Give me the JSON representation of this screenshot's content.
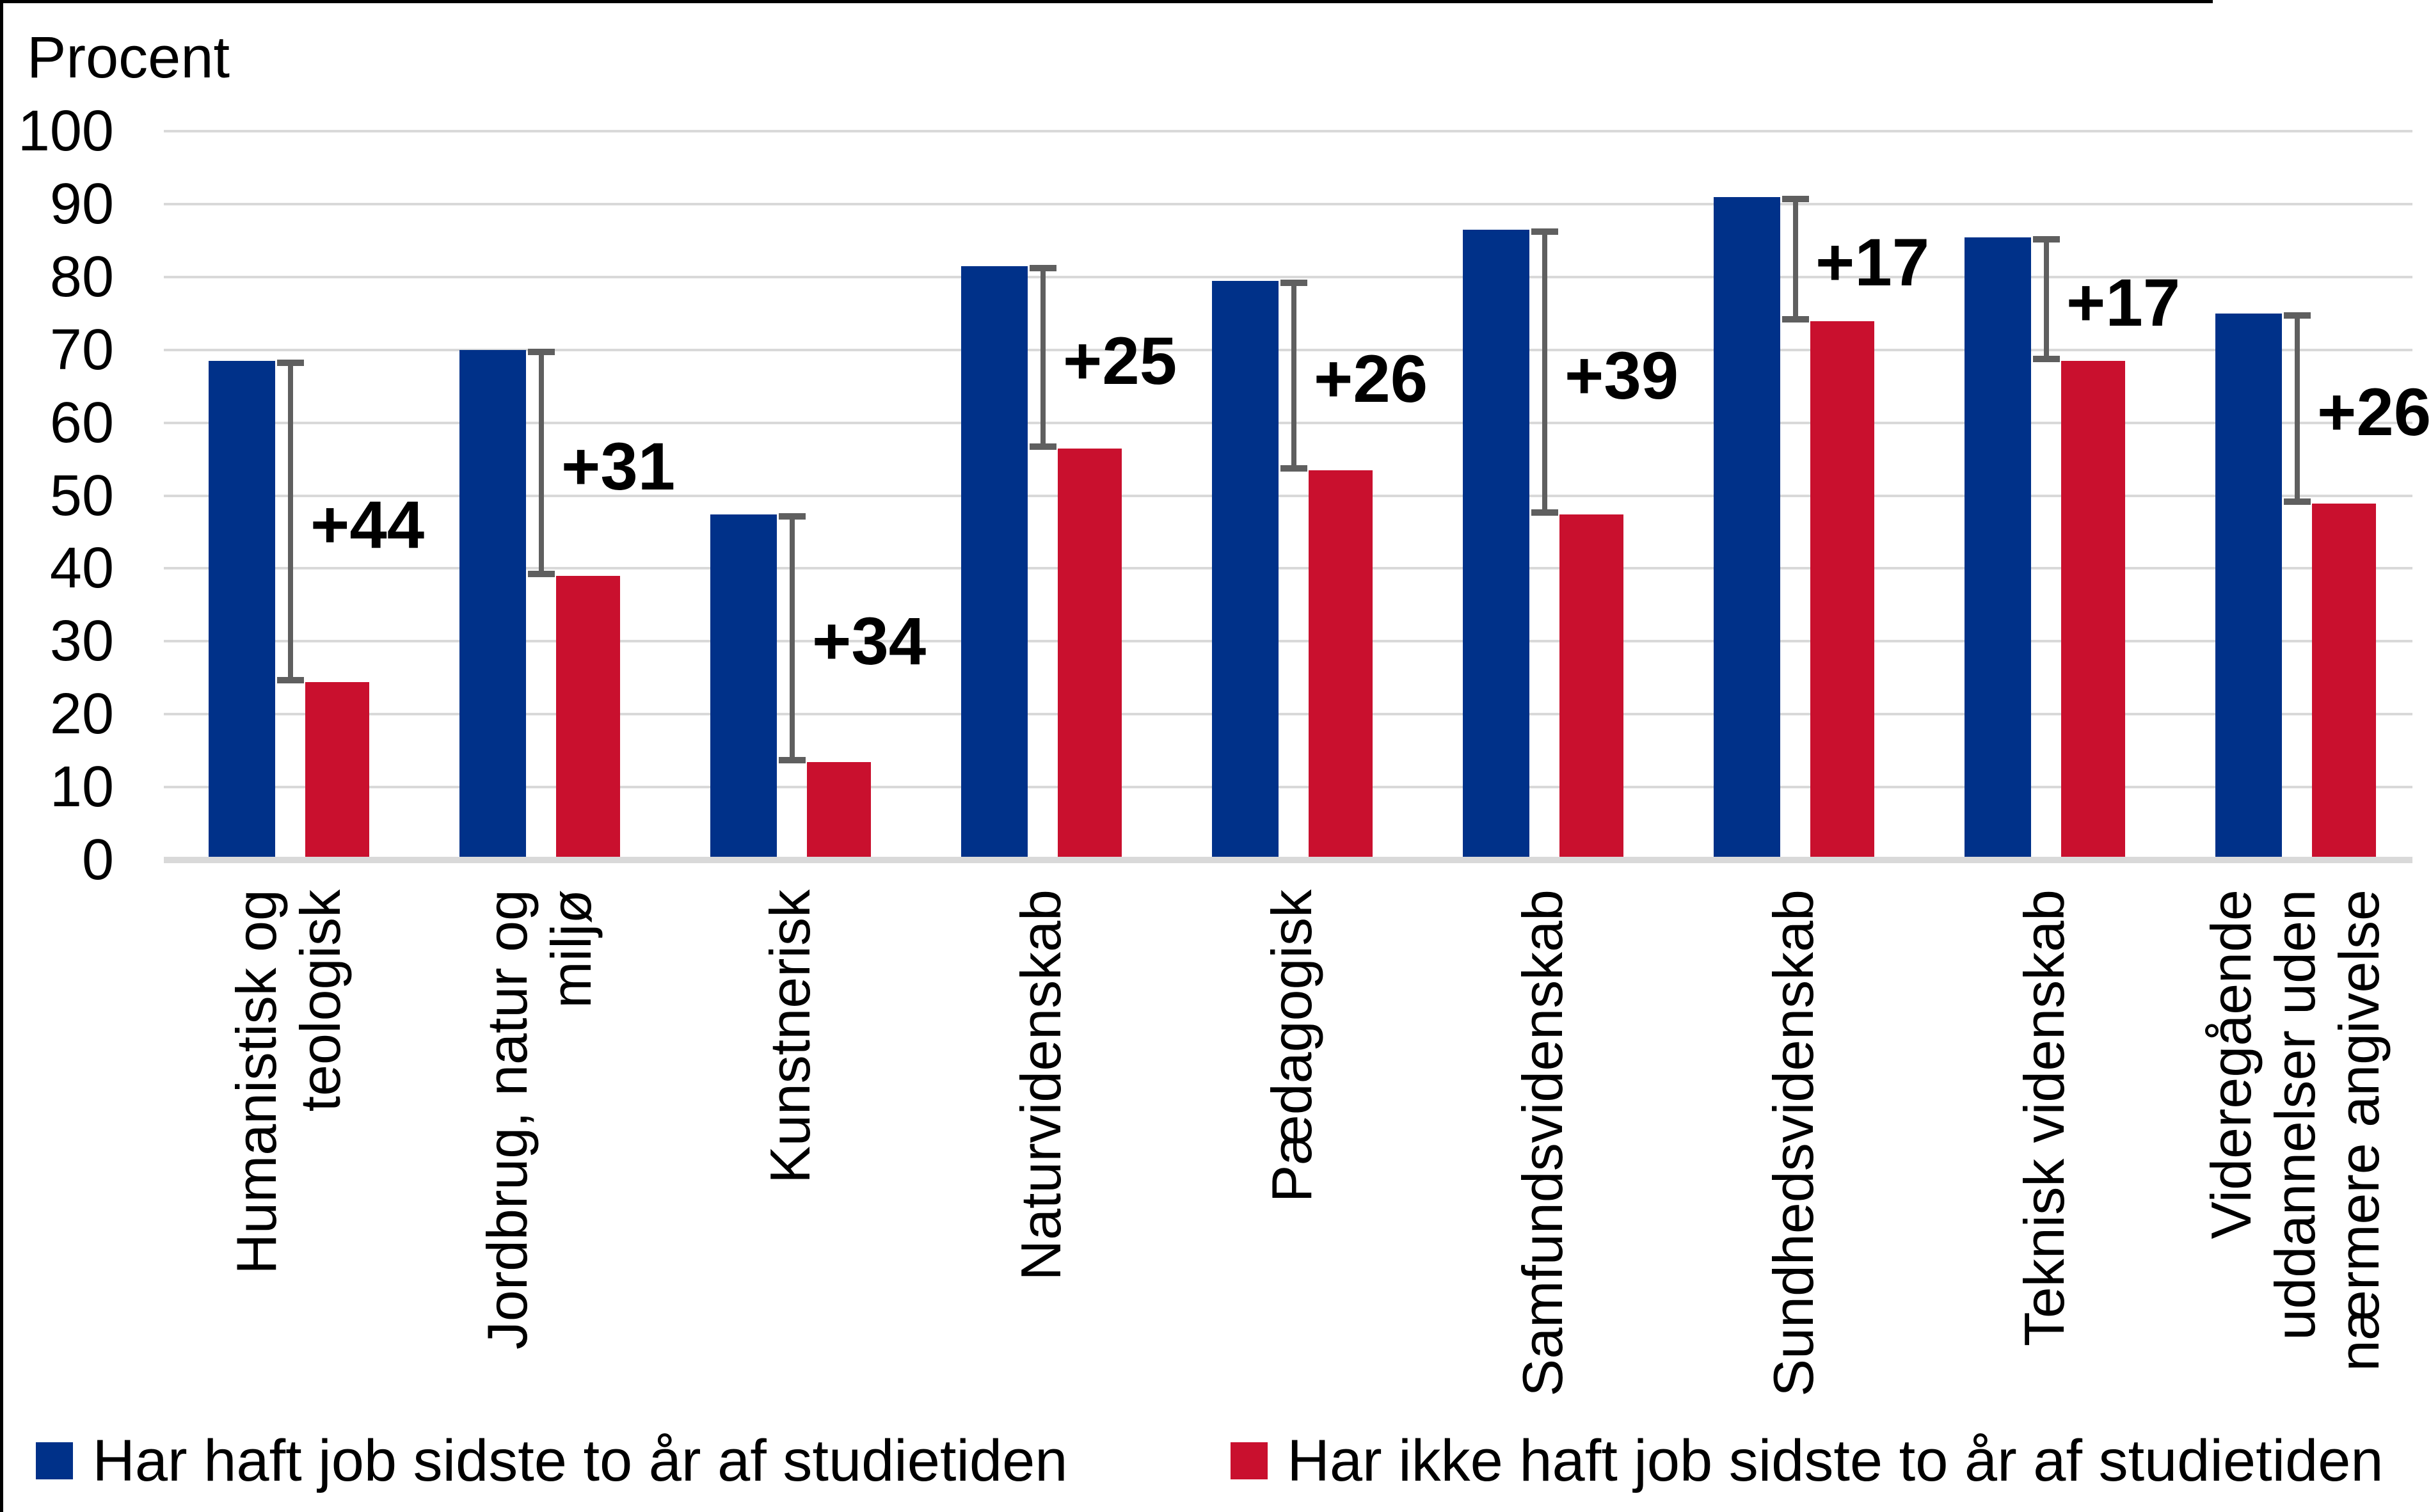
{
  "chart_data": {
    "type": "bar",
    "title": "",
    "ylabel": "Procent",
    "xlabel": "",
    "ylim": [
      0,
      100
    ],
    "ytick_step": 10,
    "grid": true,
    "legend_position": "bottom",
    "categories": [
      "Humanistisk og teologisk",
      "Jordbrug, natur og miljø",
      "Kunstnerisk",
      "Naturvidenskab",
      "Pædagogisk",
      "Samfundsvidenskab",
      "Sundhedsvidenskab",
      "Teknisk videnskab",
      "Videregående uddannelser uden nærmere angivelse"
    ],
    "category_lines": [
      [
        "Humanistisk og",
        "teologisk"
      ],
      [
        "Jordbrug, natur og",
        "miljø"
      ],
      [
        "Kunstnerisk"
      ],
      [
        "Naturvidenskab"
      ],
      [
        "Pædagogisk"
      ],
      [
        "Samfundsvidenskab"
      ],
      [
        "Sundhedsvidenskab"
      ],
      [
        "Teknisk videnskab"
      ],
      [
        "Videregående",
        "uddannelser uden",
        "nærmere angivelse"
      ]
    ],
    "series": [
      {
        "name": "Har haft job sidste to år af studietiden",
        "color": "#003189",
        "values": [
          68,
          69.5,
          47,
          81,
          79,
          86,
          90.5,
          85,
          74.5
        ]
      },
      {
        "name": "Har ikke haft job sidste to år af studietiden",
        "color": "#c9102e",
        "values": [
          24,
          38.5,
          13,
          56,
          53,
          47,
          73.5,
          68,
          48.5
        ]
      }
    ],
    "difference_labels": [
      "+44",
      "+31",
      "+34",
      "+25",
      "+26",
      "+39",
      "+17",
      "+17",
      "+26"
    ],
    "difference_bracket_color": "#5f5f5f",
    "gridline_color": "#d9d9d9",
    "text_color": "#000000"
  }
}
